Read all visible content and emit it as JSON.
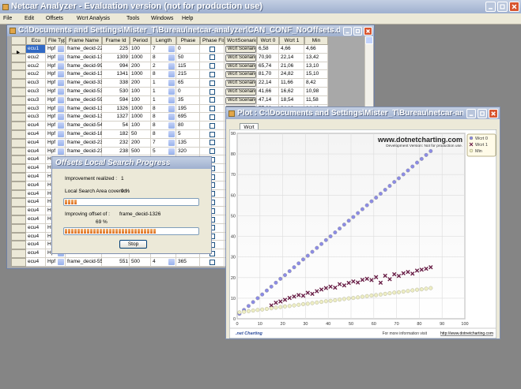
{
  "window": {
    "title": "Netcar Analyzer - Evaluation version (not for production use)"
  },
  "menu": [
    "File",
    "Edit",
    "Offsets",
    "Wcrt Analysis",
    "Tools",
    "Windows",
    "Help"
  ],
  "grid_window": {
    "title": "C:\\Documents and Settings\\Mister_T\\Bureau\\netcar-analyzer\\CAN_CONF_NoOffsets.dromon.xml"
  },
  "table": {
    "columns": [
      "Ecu",
      "File Type",
      "Frame Name",
      "Frame Id",
      "Period",
      "Length",
      "Phase",
      "Phase Fixed",
      "WcrtScenario",
      "Wcrt 0",
      "Wcrt 1",
      "Min"
    ],
    "rows": [
      [
        "ecu1",
        "Hpf",
        "frame_decid-225",
        "225",
        "100",
        "7",
        "0",
        "Wcrt Scenario",
        "6,58",
        "4,66",
        "4,66"
      ],
      [
        "ecu2",
        "Hpf",
        "frame_decid-1309",
        "1309",
        "1000",
        "8",
        "50",
        "Wcrt Scenario",
        "70,90",
        "22,14",
        "13,42"
      ],
      [
        "ecu2",
        "Hpf",
        "frame_decid-994",
        "994",
        "200",
        "2",
        "115",
        "Wcrt Scenario",
        "65,74",
        "21,06",
        "13,10"
      ],
      [
        "ecu2",
        "Hpf",
        "frame_decid-1341",
        "1341",
        "1000",
        "8",
        "215",
        "Wcrt Scenario",
        "81,70",
        "24,82",
        "15,10"
      ],
      [
        "ecu3",
        "Hpf",
        "frame_decid-338",
        "338",
        "200",
        "1",
        "65",
        "Wcrt Scenario",
        "22,14",
        "11,66",
        "8,42"
      ],
      [
        "ecu3",
        "Hpf",
        "frame_decid-530",
        "530",
        "100",
        "1",
        "0",
        "Wcrt Scenario",
        "41,66",
        "16,62",
        "10,98"
      ],
      [
        "ecu3",
        "Hpf",
        "frame_decid-594",
        "594",
        "100",
        "1",
        "35",
        "Wcrt Scenario",
        "47,14",
        "18,54",
        "11,58"
      ],
      [
        "ecu3",
        "Hpf",
        "frame_decid-1326",
        "1326",
        "1000",
        "8",
        "195",
        "Wcrt Scenario",
        "77,38",
        "24,18",
        "14,46"
      ],
      [
        "ecu3",
        "Hpf",
        "frame_decid-1327",
        "1327",
        "1000",
        "8",
        "695"
      ],
      [
        "ecu4",
        "Hpf",
        "frame_decid-54",
        "54",
        "100",
        "8",
        "80"
      ],
      [
        "ecu4",
        "Hpf",
        "frame_decid-182",
        "182",
        "50",
        "8",
        "5"
      ],
      [
        "ecu4",
        "Hpf",
        "frame_decid-232",
        "232",
        "200",
        "7",
        "135"
      ],
      [
        "ecu4",
        "Hpf",
        "frame_decid-238",
        "238",
        "500",
        "5",
        "320"
      ],
      [
        "ecu4",
        "Hpf",
        "frame_decid-245",
        "245"
      ],
      [
        "ecu4",
        "Hpf"
      ],
      [
        "ecu4",
        "Hpf"
      ],
      [
        "ecu4",
        "Hpf"
      ],
      [
        "ecu4",
        "Hpf"
      ],
      [
        "ecu4",
        "Hpf"
      ],
      [
        "ecu4",
        "Hpf"
      ],
      [
        "ecu4",
        "Hpf"
      ],
      [
        "ecu4",
        "Hpf"
      ],
      [
        "ecu4",
        "Hpf"
      ],
      [
        "ecu4",
        "Hpf"
      ],
      [
        "ecu4",
        "Hpf"
      ],
      [
        "ecu4",
        "Hpf",
        "frame_decid-551",
        "551",
        "500",
        "4",
        "365"
      ]
    ]
  },
  "dialog": {
    "title": "Offsets Local Search Progress",
    "improvement_label": "Improvement realized :",
    "improvement_value": "1",
    "area_label": "Local Search Area covered :",
    "area_progress": {
      "value": 9,
      "label": "9 %"
    },
    "offset_label": "Improving offset of :",
    "offset_frame": "frame_decid-1326",
    "offset_progress": {
      "value": 69,
      "label": "69 %"
    },
    "button": "Stop"
  },
  "plot_window": {
    "title": "Plot : C:\\Documents and Settings\\Mister_T\\Bureau\\netcar-analyzer\\...",
    "tab": "Wcrt",
    "watermark": "www.dotnetcharting.com",
    "watermark_note": "Development Version: Not for production use.",
    "footer_logo": ".net Charting",
    "footer_text": "For more information visit",
    "footer_link": "http://www.dotnetcharting.com"
  },
  "chart_data": {
    "type": "scatter",
    "x": [
      1,
      3,
      5,
      7,
      9,
      11,
      13,
      15,
      17,
      19,
      21,
      23,
      25,
      27,
      29,
      31,
      33,
      35,
      37,
      39,
      41,
      43,
      45,
      47,
      49,
      51,
      53,
      55,
      57,
      59,
      61,
      63,
      65,
      67,
      69,
      71,
      73,
      75,
      77,
      79,
      81,
      83,
      85
    ],
    "series": [
      {
        "name": "Wcrt 0",
        "color": "#8c8ce6",
        "marker": "circle",
        "values": [
          2.4,
          4.3,
          6.2,
          8.1,
          10.0,
          11.8,
          13.7,
          15.6,
          17.5,
          19.4,
          21.2,
          23.1,
          25.0,
          26.9,
          28.8,
          30.6,
          32.5,
          34.4,
          36.3,
          38.2,
          40.0,
          41.9,
          43.8,
          45.7,
          47.6,
          49.4,
          51.3,
          53.2,
          55.1,
          57.0,
          58.8,
          60.7,
          62.6,
          64.5,
          66.4,
          68.2,
          70.1,
          72.0,
          73.9,
          75.8,
          77.6,
          79.5,
          81.4
        ]
      },
      {
        "name": "Wcrt 1",
        "color": "#6a2048",
        "marker": "cross",
        "values": [
          null,
          null,
          null,
          null,
          null,
          null,
          null,
          6.5,
          7.8,
          8.4,
          9.2,
          10.1,
          10.8,
          11.5,
          11.2,
          12.6,
          12.1,
          13.4,
          14.2,
          14.9,
          15.6,
          15.1,
          16.8,
          16.2,
          17.4,
          18.1,
          17.6,
          18.9,
          19.4,
          18.8,
          20.2,
          17.5,
          20.9,
          19.2,
          21.6,
          20.8,
          22.1,
          22.7,
          21.9,
          23.4,
          23.8,
          24.3,
          25.0
        ]
      },
      {
        "name": "Min",
        "color": "#eeeec4",
        "marker": "circle",
        "values": [
          3.1,
          3.4,
          3.7,
          4.0,
          4.3,
          4.5,
          4.8,
          5.1,
          5.4,
          5.7,
          6.0,
          6.2,
          6.5,
          6.8,
          7.1,
          7.3,
          7.6,
          7.9,
          8.2,
          8.5,
          8.7,
          9.0,
          9.3,
          9.6,
          9.9,
          10.1,
          10.4,
          10.7,
          11.0,
          11.3,
          11.5,
          11.8,
          12.1,
          12.4,
          12.7,
          12.9,
          13.2,
          13.5,
          13.8,
          14.1,
          14.3,
          14.6,
          14.9
        ]
      }
    ],
    "xlim": [
      0,
      100
    ],
    "ylim": [
      0,
      90
    ],
    "xticks": [
      0,
      10,
      20,
      30,
      40,
      50,
      60,
      70,
      80,
      90,
      100
    ],
    "yticks": [
      0,
      10,
      20,
      30,
      40,
      50,
      60,
      70,
      80,
      90
    ],
    "grid": true,
    "legend": "right"
  }
}
